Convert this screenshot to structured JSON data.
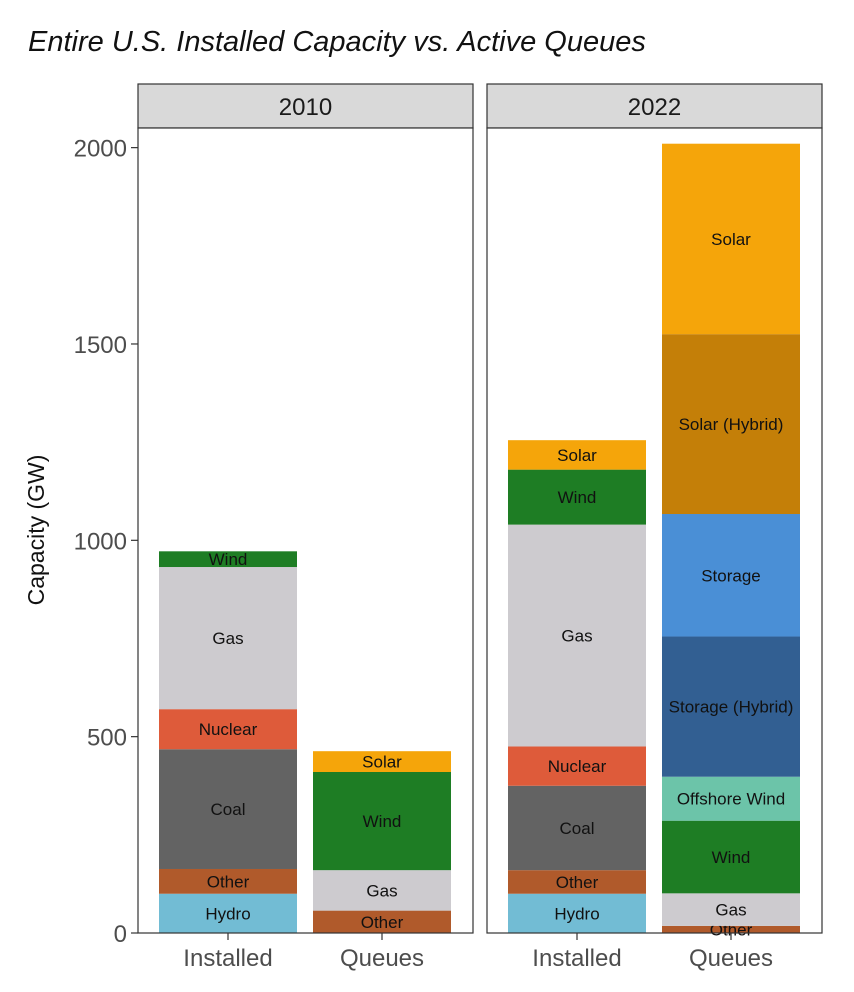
{
  "chart_data": {
    "type": "bar",
    "stacked": true,
    "faceted": true,
    "title": "Entire U.S. Installed Capacity vs. Active Queues",
    "xlabel": "",
    "ylabel": "Capacity (GW)",
    "ylim": [
      0,
      2050
    ],
    "yticks": [
      0,
      500,
      1000,
      1500,
      2000
    ],
    "grid": false,
    "legend": "none",
    "categories": [
      "Installed",
      "Queues"
    ],
    "colors": {
      "Hydro": "#72bcd4",
      "Other": "#b05a2b",
      "Coal": "#636363",
      "Nuclear": "#de5b3a",
      "Gas": "#cdcbcf",
      "Wind": "#1e7d24",
      "Solar": "#f5a50a",
      "Solar (Hybrid)": "#c47f08",
      "Storage": "#4a8fd6",
      "Storage (Hybrid)": "#325f92",
      "Offshore Wind": "#6cc4a9"
    },
    "facets": [
      {
        "label": "2010",
        "bars": [
          {
            "category": "Installed",
            "segments": [
              {
                "name": "Hydro",
                "value": 100
              },
              {
                "name": "Other",
                "value": 63
              },
              {
                "name": "Coal",
                "value": 305
              },
              {
                "name": "Nuclear",
                "value": 102
              },
              {
                "name": "Gas",
                "value": 362
              },
              {
                "name": "Wind",
                "value": 40
              }
            ]
          },
          {
            "category": "Queues",
            "segments": [
              {
                "name": "Other",
                "value": 57
              },
              {
                "name": "Gas",
                "value": 103
              },
              {
                "name": "Wind",
                "value": 250
              },
              {
                "name": "Solar",
                "value": 53
              }
            ]
          }
        ]
      },
      {
        "label": "2022",
        "bars": [
          {
            "category": "Installed",
            "segments": [
              {
                "name": "Hydro",
                "value": 100
              },
              {
                "name": "Other",
                "value": 60
              },
              {
                "name": "Coal",
                "value": 215
              },
              {
                "name": "Nuclear",
                "value": 100
              },
              {
                "name": "Gas",
                "value": 565
              },
              {
                "name": "Wind",
                "value": 140
              },
              {
                "name": "Solar",
                "value": 75
              }
            ]
          },
          {
            "category": "Queues",
            "segments": [
              {
                "name": "Other",
                "value": 18
              },
              {
                "name": "Gas",
                "value": 83
              },
              {
                "name": "Wind",
                "value": 185
              },
              {
                "name": "Offshore Wind",
                "value": 112
              },
              {
                "name": "Storage (Hybrid)",
                "value": 357
              },
              {
                "name": "Storage",
                "value": 312
              },
              {
                "name": "Solar (Hybrid)",
                "value": 458
              },
              {
                "name": "Solar",
                "value": 485
              }
            ]
          }
        ]
      }
    ]
  }
}
